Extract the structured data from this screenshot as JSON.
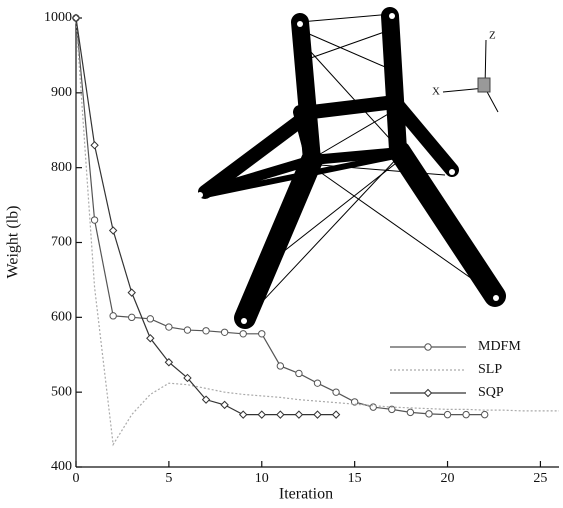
{
  "chart_data": {
    "type": "line",
    "x_label": "Iteration",
    "y_label": "Weight (lb)",
    "xlim": [
      0,
      26
    ],
    "ylim": [
      400,
      1000
    ],
    "xticks": [
      0,
      5,
      10,
      15,
      20,
      25
    ],
    "yticks": [
      400,
      500,
      600,
      700,
      800,
      900,
      1000
    ],
    "legend": "right",
    "inset_labels": [
      "Z",
      "X"
    ],
    "series": [
      {
        "name": "MDFM",
        "color": "#555555",
        "marker": "circle",
        "dash": "none",
        "x": [
          0,
          1,
          2,
          3,
          4,
          5,
          6,
          7,
          8,
          9,
          10,
          11,
          12,
          13,
          14,
          15,
          16,
          17,
          18,
          19,
          20,
          21,
          22
        ],
        "values": [
          1000,
          730,
          602,
          600,
          598,
          587,
          583,
          582,
          580,
          578,
          578,
          535,
          525,
          512,
          500,
          487,
          480,
          477,
          473,
          471,
          470,
          470,
          470
        ]
      },
      {
        "name": "SLP",
        "color": "#aaaaaa",
        "marker": "none",
        "dash": "2,2",
        "x": [
          0,
          1,
          2,
          3,
          4,
          5,
          6,
          7,
          8,
          9,
          10,
          11,
          12,
          13,
          14,
          15,
          16,
          17,
          18,
          19,
          20,
          21,
          22,
          23,
          24,
          25,
          26
        ],
        "values": [
          1000,
          640,
          430,
          470,
          497,
          512,
          510,
          505,
          500,
          497,
          495,
          493,
          490,
          488,
          486,
          484,
          482,
          480,
          479,
          478,
          477,
          477,
          476,
          476,
          475,
          475,
          475
        ]
      },
      {
        "name": "SQP",
        "color": "#333333",
        "marker": "diamond",
        "dash": "none",
        "x": [
          0,
          1,
          2,
          3,
          4,
          5,
          6,
          7,
          8,
          9,
          10,
          11,
          12,
          13,
          14
        ],
        "values": [
          1000,
          830,
          716,
          633,
          572,
          540,
          519,
          490,
          483,
          470,
          470,
          470,
          470,
          470,
          470
        ]
      }
    ]
  }
}
